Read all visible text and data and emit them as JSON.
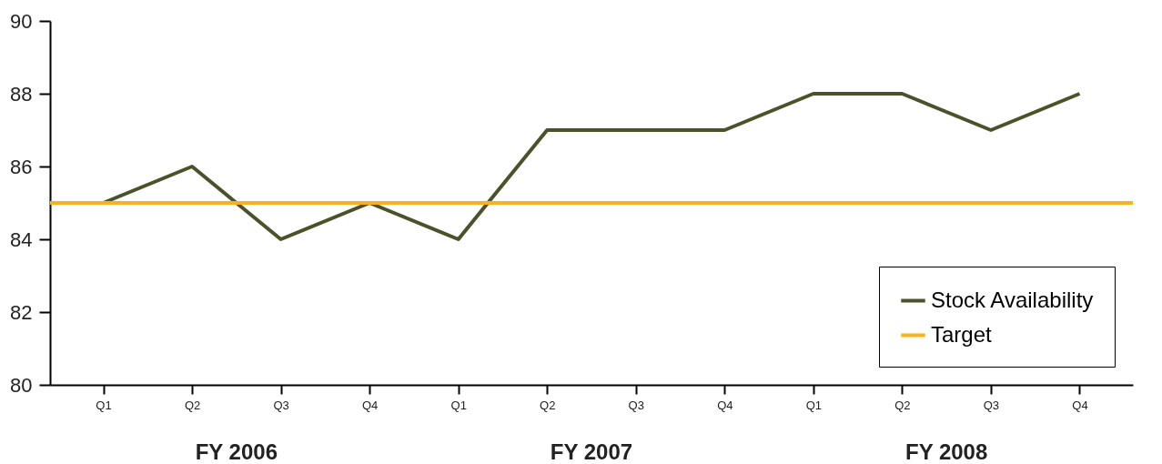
{
  "chart_data": {
    "type": "line",
    "categories": [
      "Q1",
      "Q2",
      "Q3",
      "Q4",
      "Q1",
      "Q2",
      "Q3",
      "Q4",
      "Q1",
      "Q2",
      "Q3",
      "Q4"
    ],
    "series": [
      {
        "name": "Stock Availability",
        "color": "#4b5129",
        "values": [
          85,
          86,
          84,
          85,
          84,
          87,
          87,
          87,
          88,
          88,
          87,
          88
        ]
      }
    ],
    "ref_lines": [
      {
        "axis": "y",
        "value": 85,
        "label": "Target",
        "color": "#f9b21b"
      }
    ],
    "annotations": [
      "FY 2006",
      "FY 2007",
      "FY 2008"
    ],
    "ylim": [
      80,
      90
    ],
    "yticks": [
      80,
      82,
      84,
      86,
      88,
      90
    ],
    "grid": false,
    "legend": "bottom right",
    "marker": "none",
    "line_style": "solid"
  }
}
